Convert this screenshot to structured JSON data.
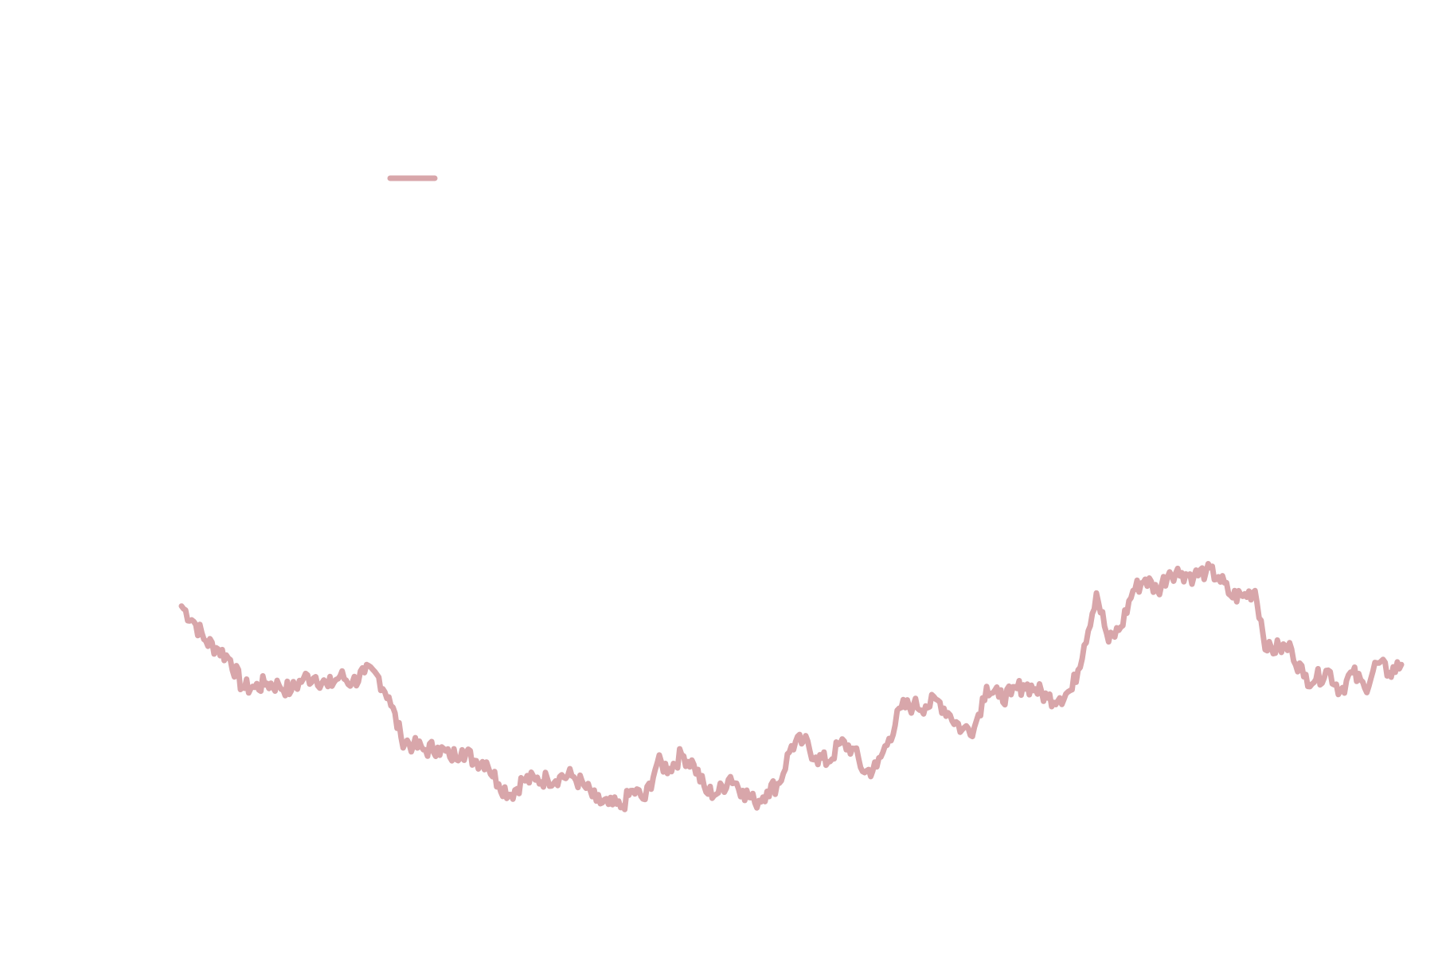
{
  "colors": {
    "background": "#ffffff",
    "series_line": "#d8a6aa"
  },
  "chart_data": {
    "type": "line",
    "title": "",
    "xlabel": "",
    "ylabel": "",
    "legend": {
      "position": "top-left",
      "entries": [
        {
          "label": "",
          "color": "#d8a6aa"
        }
      ]
    },
    "grid": false,
    "axes_visible": false,
    "ylim": [
      0,
      1000
    ],
    "x": [
      0,
      10,
      20,
      30,
      40,
      50,
      60,
      70,
      80,
      90,
      100,
      110,
      120,
      130,
      140,
      150,
      160,
      170,
      180,
      190,
      200,
      210,
      220,
      230,
      240,
      250,
      260,
      270,
      280,
      290,
      300,
      310,
      320,
      330,
      340,
      350,
      360,
      370,
      380,
      390,
      400,
      410,
      420,
      430,
      440,
      450,
      460,
      470,
      480,
      490,
      500,
      510,
      520,
      530,
      540,
      550,
      560,
      570,
      580,
      590,
      600,
      610,
      620,
      630,
      640,
      650,
      660,
      670,
      680,
      690,
      700,
      710,
      720,
      730,
      740,
      750,
      760,
      770,
      780,
      790,
      800,
      810,
      820,
      830,
      840,
      850,
      860,
      870,
      880,
      890,
      900,
      910,
      920,
      930,
      940,
      950,
      960,
      970,
      980,
      990,
      1000
    ],
    "series": [
      {
        "name": "",
        "color": "#d8a6aa",
        "values": [
          396,
          377,
          353,
          343,
          330,
          296,
          296,
          301,
          298,
          292,
          307,
          309,
          297,
          310,
          302,
          314,
          312,
          284,
          234,
          224,
          219,
          222,
          210,
          219,
          206,
          204,
          177,
          164,
          182,
          182,
          183,
          186,
          187,
          175,
          156,
          152,
          148,
          169,
          158,
          203,
          196,
          213,
          201,
          167,
          166,
          186,
          169,
          154,
          168,
          178,
          224,
          230,
          210,
          204,
          227,
          221,
          191,
          198,
          233,
          271,
          274,
          273,
          280,
          262,
          244,
          247,
          297,
          284,
          287,
          299,
          294,
          283,
          283,
          293,
          348,
          412,
          352,
          370,
          415,
          429,
          415,
          438,
          437,
          433,
          439,
          432,
          409,
          408,
          415,
          341,
          345,
          343,
          309,
          306,
          317,
          292,
          314,
          295,
          326,
          314,
          324
        ]
      }
    ]
  }
}
